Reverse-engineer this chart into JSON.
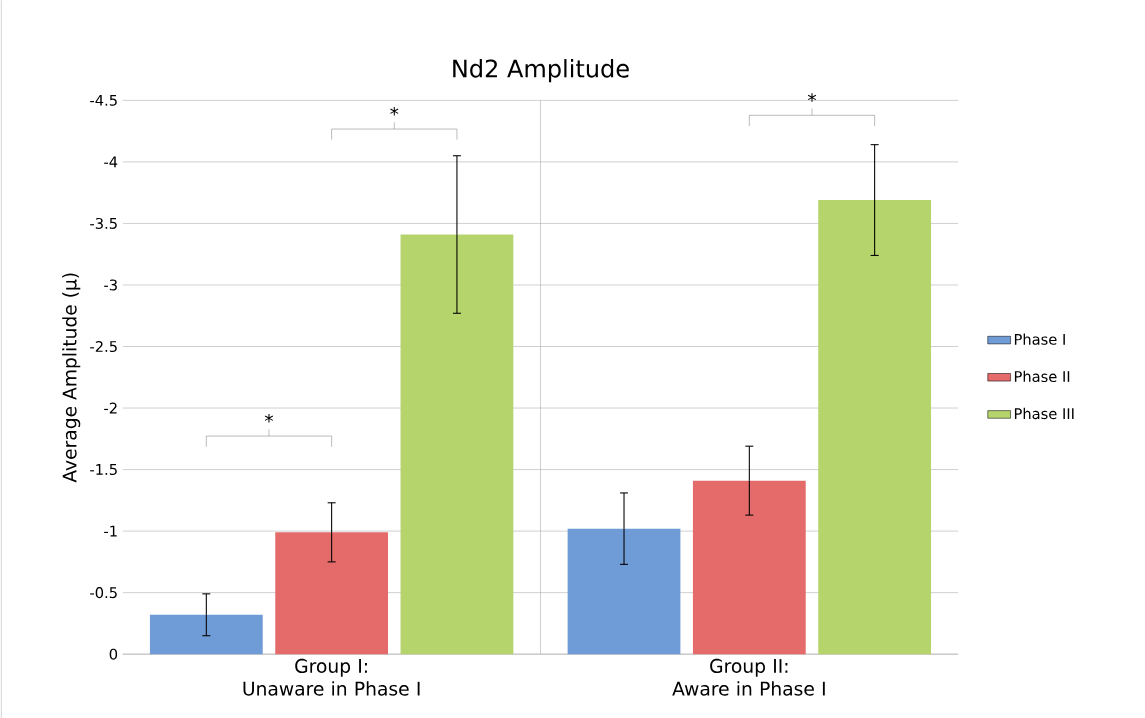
{
  "chart_data": {
    "type": "bar",
    "title": "Nd2 Amplitude",
    "ylabel": "Average Amplitude (µ)",
    "categories": [
      "Group I:\nUnaware in Phase I",
      "Group II:\nAware in Phase I"
    ],
    "series": [
      {
        "name": "Phase I",
        "color": "#6f9bd6",
        "values": [
          -0.32,
          -1.02
        ],
        "errors": [
          0.17,
          0.29
        ]
      },
      {
        "name": "Phase II",
        "color": "#e56b6b",
        "values": [
          -0.99,
          -1.41
        ],
        "errors": [
          0.24,
          0.28
        ]
      },
      {
        "name": "Phase III",
        "color": "#b5d46c",
        "values": [
          -3.41,
          -3.69
        ],
        "errors": [
          0.64,
          0.45
        ]
      }
    ],
    "ylim": [
      0,
      -4.5
    ],
    "yticks": [
      0,
      -0.5,
      -1,
      -1.5,
      -2,
      -2.5,
      -3,
      -3.5,
      -4,
      -4.5
    ],
    "grid": "y",
    "legend": "right",
    "annotations": [
      "*",
      "*",
      "*"
    ]
  }
}
